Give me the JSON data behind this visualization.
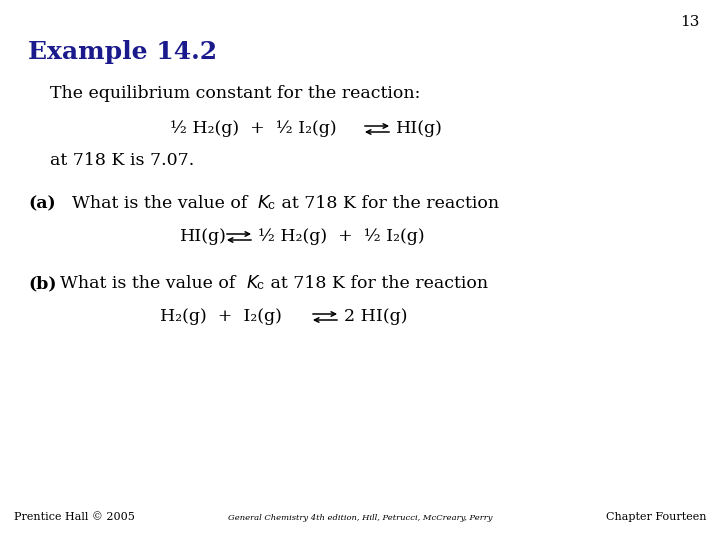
{
  "page_number": "13",
  "title": "Example 14.2",
  "title_color": "#1a1a8c",
  "title_fontsize": 18,
  "background_color": "#ffffff",
  "text_color": "#000000",
  "body_fontsize": 12.5,
  "footer_left": "Prentice Hall © 2005",
  "footer_center": "General Chemistry 4th edition, Hill, Petrucci, McCreary, Perry",
  "footer_right": "Chapter Fourteen",
  "line1": "The equilibrium constant for the reaction:",
  "line3": "at 718 K is 7.07.",
  "section_a_label": "(a)",
  "section_b_label": "(b)"
}
